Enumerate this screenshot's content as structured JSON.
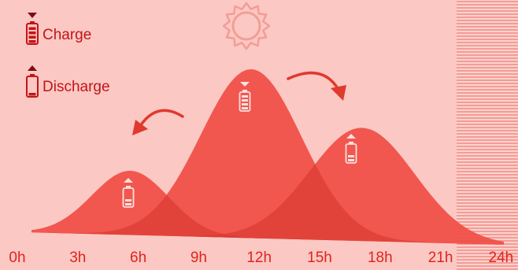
{
  "colors": {
    "background": "#fbc8c4",
    "curve_fill": "#f04d44",
    "overlap_fill": "#d63a32",
    "legend_red": "#c41416",
    "tick_color": "#e0241c",
    "arrow": "#e03a2e",
    "hatch_line": "#f07d76",
    "sun": "#f39d96"
  },
  "legend": {
    "charge_label": "Charge",
    "discharge_label": "Discharge",
    "charge_icon": "battery-charge-arrow-down-icon",
    "discharge_icon": "battery-discharge-arrow-up-icon"
  },
  "decorations": {
    "sun_icon": "sun-icon",
    "night_hatch": "night-hatch-pattern"
  },
  "chart_data": {
    "type": "area",
    "title": "",
    "xlabel": "",
    "ylabel": "",
    "x_ticks": [
      "0h",
      "3h",
      "6h",
      "9h",
      "12h",
      "15h",
      "18h",
      "21h",
      "24h"
    ],
    "xlim": [
      0,
      24
    ],
    "grid": false,
    "legend_placement": "top-left",
    "series": [
      {
        "role": "discharge",
        "peak_hour": 6,
        "relative_peak": 0.38,
        "spread_hours": 1.9
      },
      {
        "role": "charge",
        "peak_hour": 12,
        "relative_peak": 1.0,
        "spread_hours": 2.5
      },
      {
        "role": "discharge",
        "peak_hour": 17.5,
        "relative_peak": 0.67,
        "spread_hours": 2.6
      }
    ],
    "arrows": [
      {
        "from_hour": 10,
        "to_hour": 6
      },
      {
        "from_hour": 14,
        "to_hour": 17.5
      }
    ]
  }
}
